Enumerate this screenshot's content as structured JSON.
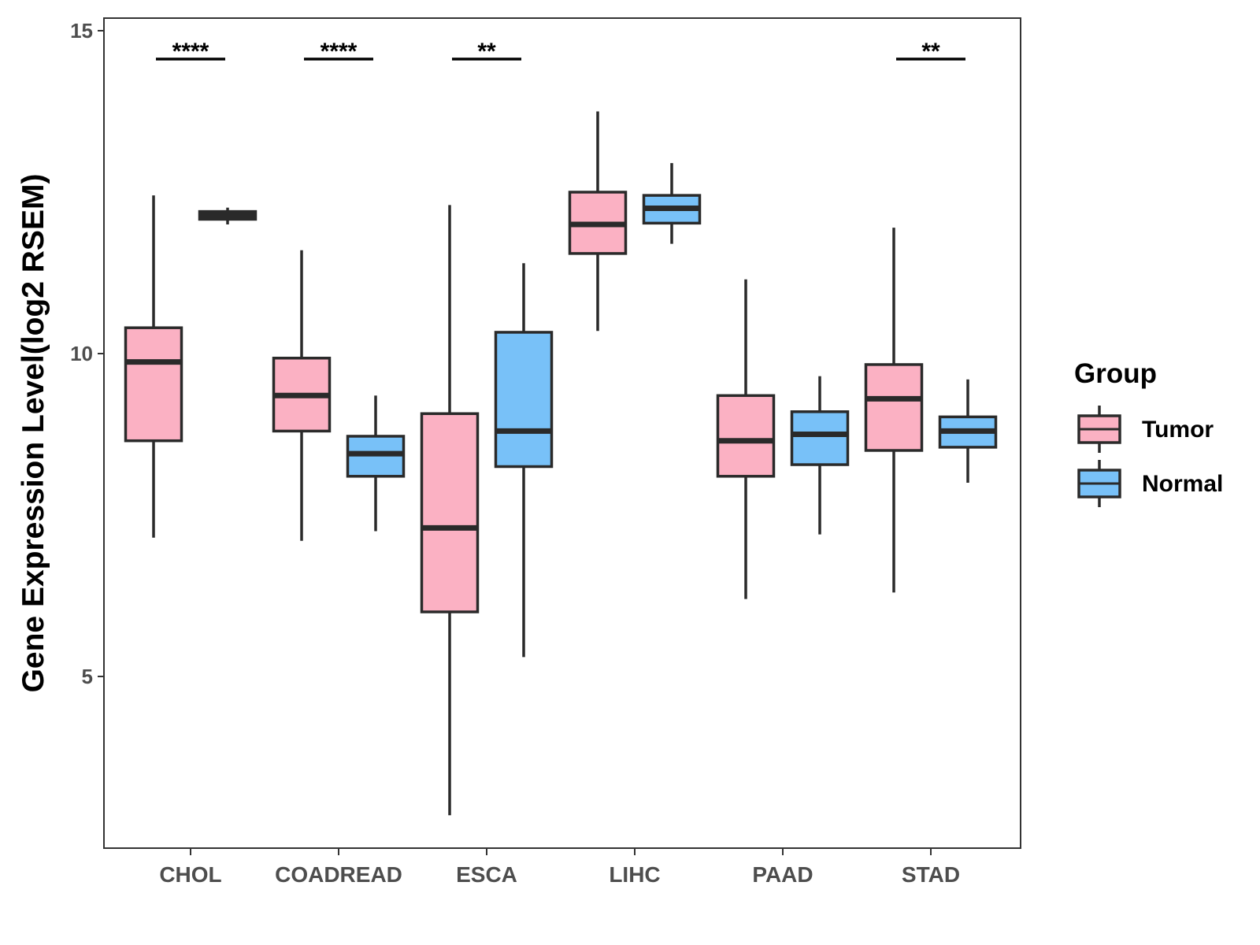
{
  "chart_data": {
    "type": "boxplot",
    "title": "",
    "xlabel": "",
    "ylabel": "Gene Expression Level(log2 RSEM)",
    "ylim": [
      2.6,
      15.5
    ],
    "yticks": [
      5,
      10,
      15
    ],
    "grid": false,
    "categories": [
      "CHOL",
      "COADREAD",
      "ESCA",
      "LIHC",
      "PAAD",
      "STAD"
    ],
    "legend": {
      "title": "Group",
      "position": "right",
      "items": [
        {
          "name": "Tumor",
          "color": "#fbb1c3"
        },
        {
          "name": "Normal",
          "color": "#78c1f8"
        }
      ]
    },
    "series": [
      {
        "name": "Tumor",
        "color": "#fbb1c3",
        "boxes": [
          {
            "category": "CHOL",
            "min": 7.15,
            "q1": 8.65,
            "median": 9.87,
            "q3": 10.4,
            "max": 12.45
          },
          {
            "category": "COADREAD",
            "min": 7.1,
            "q1": 8.8,
            "median": 9.35,
            "q3": 9.93,
            "max": 11.6
          },
          {
            "category": "ESCA",
            "min": 2.85,
            "q1": 6.0,
            "median": 7.3,
            "q3": 9.07,
            "max": 12.3
          },
          {
            "category": "LIHC",
            "min": 10.35,
            "q1": 11.55,
            "median": 12.0,
            "q3": 12.5,
            "max": 13.75
          },
          {
            "category": "PAAD",
            "min": 6.2,
            "q1": 8.1,
            "median": 8.65,
            "q3": 9.35,
            "max": 11.15
          },
          {
            "category": "STAD",
            "min": 6.3,
            "q1": 8.5,
            "median": 9.3,
            "q3": 9.83,
            "max": 11.95
          }
        ]
      },
      {
        "name": "Normal",
        "color": "#78c1f8",
        "boxes": [
          {
            "category": "CHOL",
            "min": 12.0,
            "q1": 12.08,
            "median": 12.14,
            "q3": 12.2,
            "max": 12.26
          },
          {
            "category": "COADREAD",
            "min": 7.25,
            "q1": 8.1,
            "median": 8.45,
            "q3": 8.72,
            "max": 9.35
          },
          {
            "category": "ESCA",
            "min": 5.3,
            "q1": 8.25,
            "median": 8.8,
            "q3": 10.33,
            "max": 11.4
          },
          {
            "category": "LIHC",
            "min": 11.7,
            "q1": 12.02,
            "median": 12.25,
            "q3": 12.45,
            "max": 12.95
          },
          {
            "category": "PAAD",
            "min": 7.2,
            "q1": 8.28,
            "median": 8.75,
            "q3": 9.1,
            "max": 9.65
          },
          {
            "category": "STAD",
            "min": 8.0,
            "q1": 8.55,
            "median": 8.8,
            "q3": 9.02,
            "max": 9.6
          }
        ]
      }
    ],
    "significance": [
      {
        "category": "CHOL",
        "label": "****"
      },
      {
        "category": "COADREAD",
        "label": "****"
      },
      {
        "category": "ESCA",
        "label": "**"
      },
      {
        "category": "STAD",
        "label": "**"
      }
    ]
  }
}
